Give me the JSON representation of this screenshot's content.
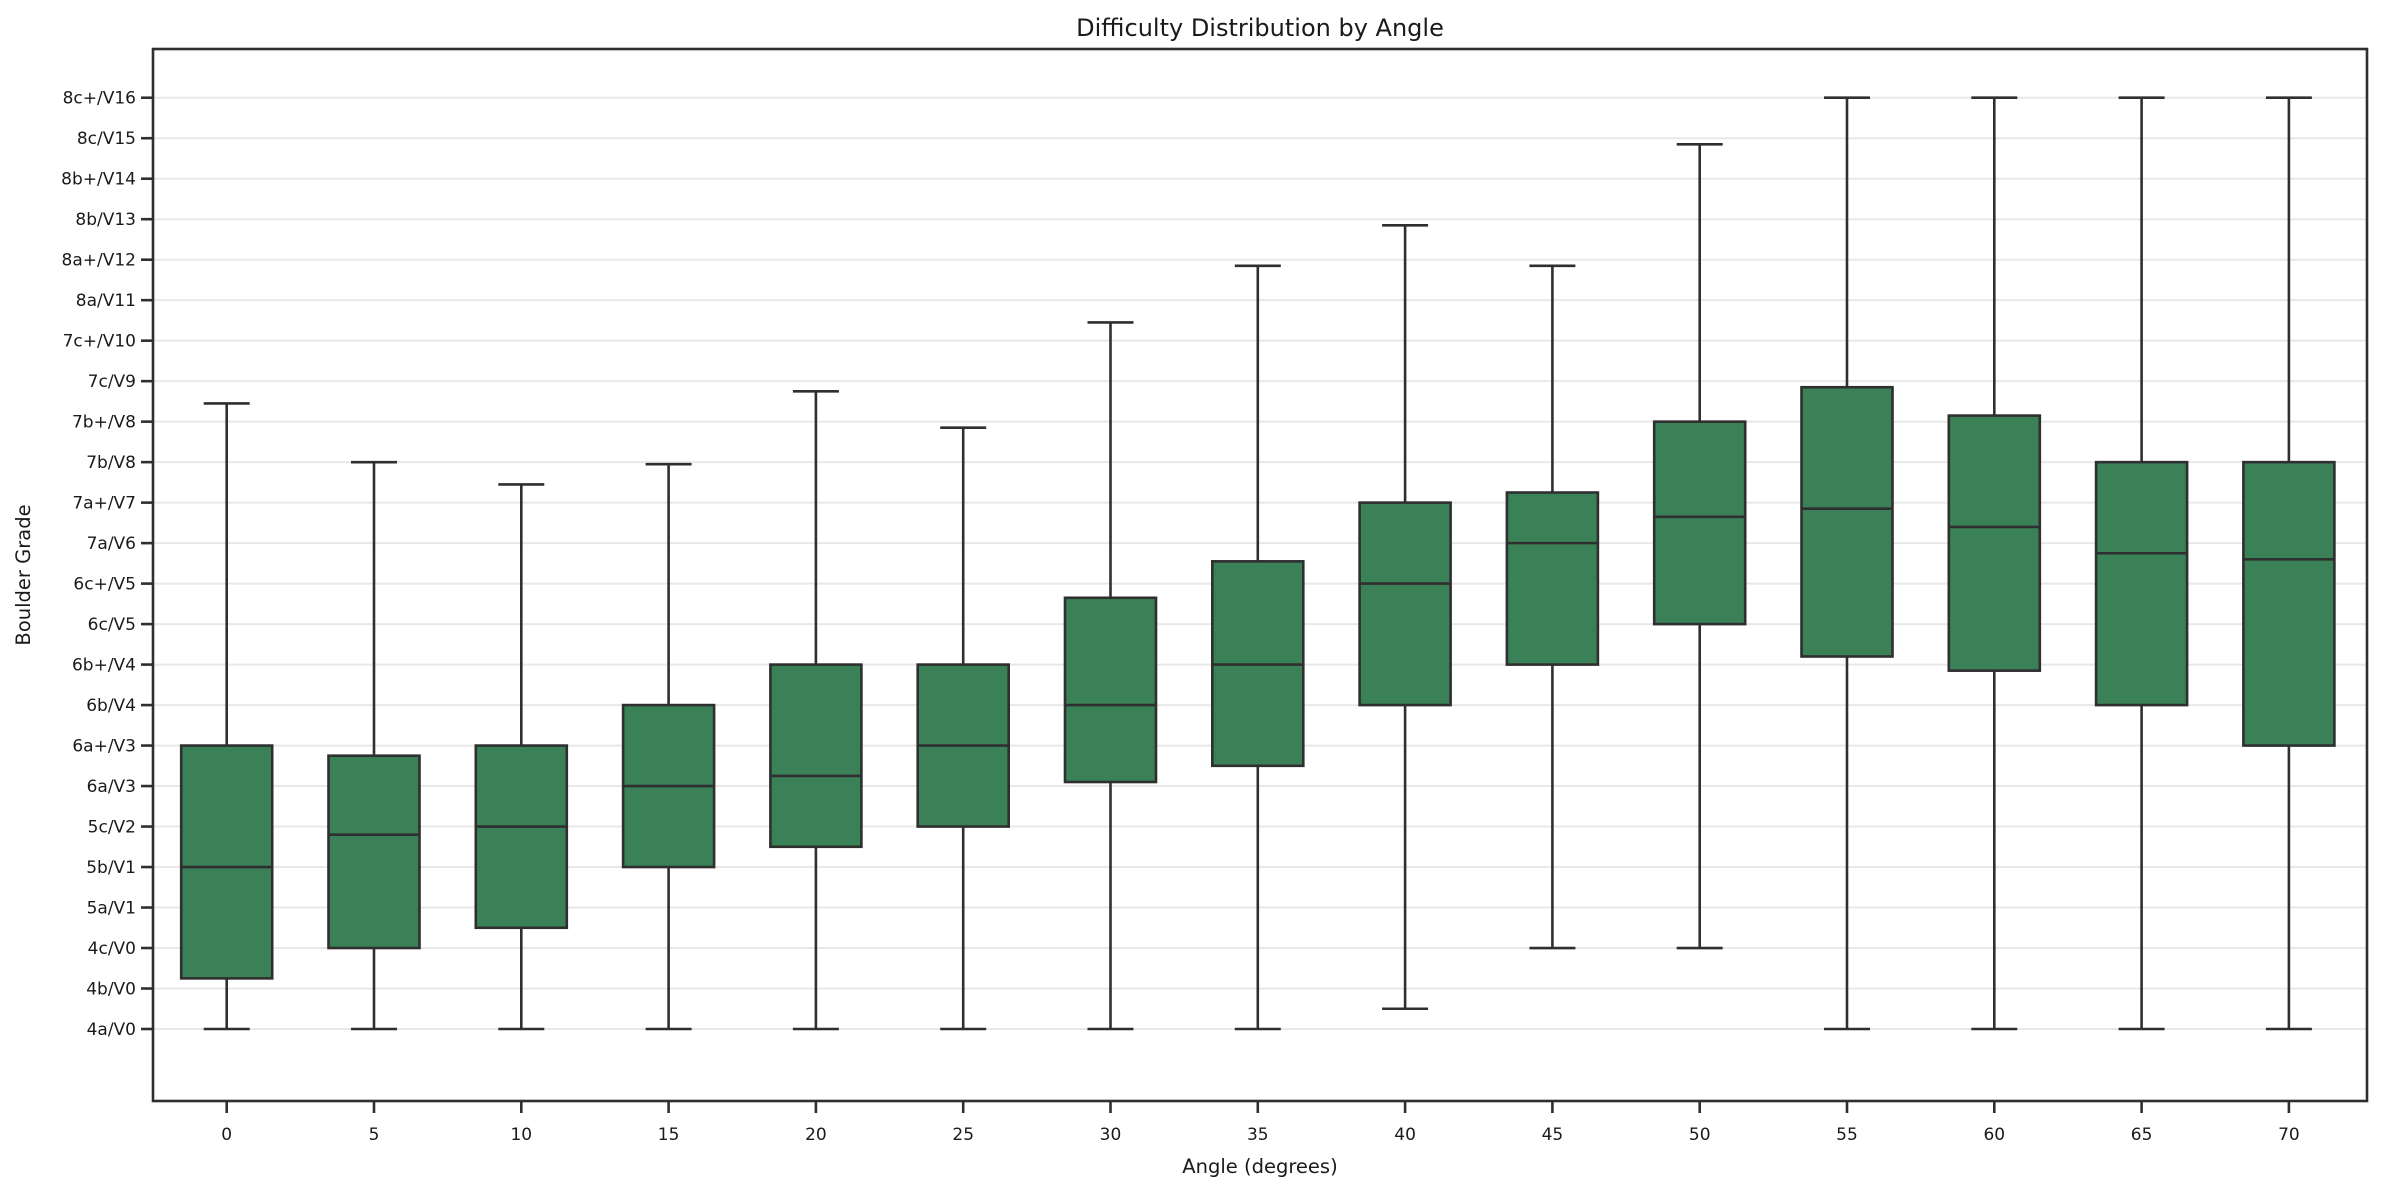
{
  "figure": {
    "title": "Difficulty Distribution by Angle",
    "xlabel": "Angle (degrees)",
    "ylabel": "Boulder Grade"
  },
  "chart_data": {
    "type": "boxplot",
    "title": "Difficulty Distribution by Angle",
    "xlabel": "Angle (degrees)",
    "ylabel": "Boulder Grade",
    "grid": "horizontal",
    "legend": "none",
    "x_categories": [
      0,
      5,
      10,
      15,
      20,
      25,
      30,
      35,
      40,
      45,
      50,
      55,
      60,
      65,
      70
    ],
    "y_tick_labels": [
      "4a/V0",
      "4b/V0",
      "4c/V0",
      "5a/V1",
      "5b/V1",
      "5c/V2",
      "6a/V3",
      "6a+/V3",
      "6b/V4",
      "6b+/V4",
      "6c/V5",
      "6c+/V5",
      "7a/V6",
      "7a+/V7",
      "7b/V8",
      "7b+/V8",
      "7c/V9",
      "7c+/V10",
      "8a/V11",
      "8a+/V12",
      "8b/V13",
      "8b+/V14",
      "8c/V15",
      "8c+/V16"
    ],
    "y_unit_note": "box values are indices into y_tick_labels (0 = 4a/V0, 23 = 8c+/V16)",
    "ylim_indices": [
      -1.8,
      24.2
    ],
    "series": [
      {
        "angle": 0,
        "whisker_low": 0,
        "q1": 1.25,
        "median": 4.0,
        "q3": 7.0,
        "whisker_high": 15.45
      },
      {
        "angle": 5,
        "whisker_low": 0,
        "q1": 2.0,
        "median": 4.8,
        "q3": 6.75,
        "whisker_high": 14.0
      },
      {
        "angle": 10,
        "whisker_low": 0,
        "q1": 2.5,
        "median": 5.0,
        "q3": 7.0,
        "whisker_high": 13.45
      },
      {
        "angle": 15,
        "whisker_low": 0,
        "q1": 4.0,
        "median": 6.0,
        "q3": 8.0,
        "whisker_high": 13.95
      },
      {
        "angle": 20,
        "whisker_low": 0,
        "q1": 4.5,
        "median": 6.25,
        "q3": 9.0,
        "whisker_high": 15.75
      },
      {
        "angle": 25,
        "whisker_low": 0,
        "q1": 5.0,
        "median": 7.0,
        "q3": 9.0,
        "whisker_high": 14.85
      },
      {
        "angle": 30,
        "whisker_low": 0,
        "q1": 6.1,
        "median": 8.0,
        "q3": 10.65,
        "whisker_high": 17.45
      },
      {
        "angle": 35,
        "whisker_low": 0,
        "q1": 6.5,
        "median": 9.0,
        "q3": 11.55,
        "whisker_high": 18.85
      },
      {
        "angle": 40,
        "whisker_low": 0.5,
        "q1": 8.0,
        "median": 11.0,
        "q3": 13.0,
        "whisker_high": 19.85
      },
      {
        "angle": 45,
        "whisker_low": 2.0,
        "q1": 9.0,
        "median": 12.0,
        "q3": 13.25,
        "whisker_high": 18.85
      },
      {
        "angle": 50,
        "whisker_low": 2.0,
        "q1": 10.0,
        "median": 12.65,
        "q3": 15.0,
        "whisker_high": 21.85
      },
      {
        "angle": 55,
        "whisker_low": 0,
        "q1": 9.2,
        "median": 12.85,
        "q3": 15.85,
        "whisker_high": 23.0
      },
      {
        "angle": 60,
        "whisker_low": 0,
        "q1": 8.85,
        "median": 12.4,
        "q3": 15.15,
        "whisker_high": 23.0
      },
      {
        "angle": 65,
        "whisker_low": 0,
        "q1": 8.0,
        "median": 11.75,
        "q3": 14.0,
        "whisker_high": 23.0
      },
      {
        "angle": 70,
        "whisker_low": 0,
        "q1": 7.0,
        "median": 11.6,
        "q3": 14.0,
        "whisker_high": 23.0
      }
    ],
    "colors": {
      "box_fill": "#3a8158",
      "line": "#2f2f2f",
      "gridline": "#e8e8e8",
      "background": "#ffffff",
      "text": "#1a1a1a"
    }
  }
}
